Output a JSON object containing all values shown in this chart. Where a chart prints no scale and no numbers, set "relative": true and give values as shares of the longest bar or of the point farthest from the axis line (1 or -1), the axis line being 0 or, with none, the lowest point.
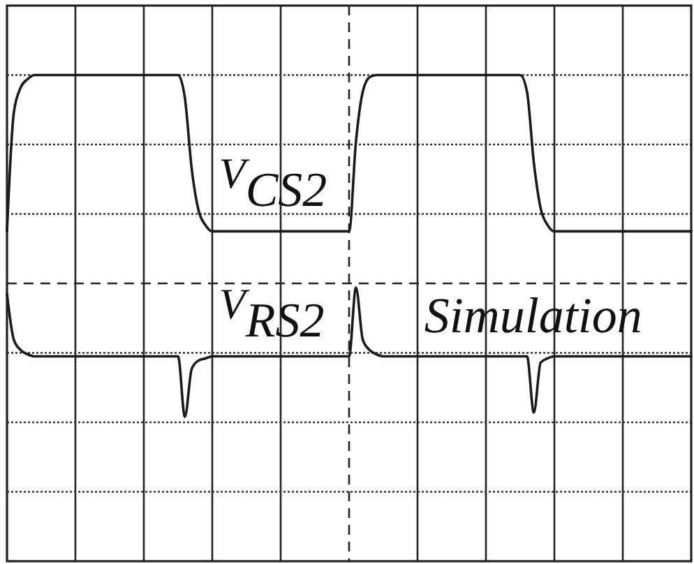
{
  "chart_data": {
    "type": "line",
    "relative": true,
    "grid": true,
    "line_style": "solid",
    "categories": [
      null,
      null,
      null,
      null,
      null,
      null,
      null,
      null,
      null,
      null,
      null,
      null,
      null,
      null,
      null,
      null,
      null,
      null,
      null,
      null,
      null,
      null,
      null,
      null,
      null,
      null,
      null,
      null,
      null,
      null,
      null,
      null,
      null,
      null,
      null,
      null,
      null,
      null,
      null,
      null,
      null,
      null,
      null,
      null,
      null,
      null,
      null,
      null,
      null,
      null,
      null,
      null,
      null,
      null,
      null,
      null,
      null,
      null,
      null,
      null,
      null,
      null,
      null,
      null,
      null,
      null,
      null,
      null,
      null,
      null,
      null,
      null,
      null,
      null,
      null,
      null,
      null,
      null,
      null,
      null,
      null,
      null,
      null,
      null,
      null,
      null,
      null,
      null,
      null,
      null,
      null,
      null,
      null,
      null,
      null,
      null,
      null,
      null,
      null,
      null,
      null
    ],
    "series": [
      {
        "name": "V$_{CS2}$",
        "color": "#1a1a1a",
        "values": [
          0.25,
          0.82,
          0.94,
          0.98,
          1,
          1,
          1,
          1,
          1,
          1,
          1,
          1,
          1,
          1,
          1,
          1,
          1,
          1,
          1,
          1,
          1,
          1,
          1,
          1,
          1,
          1,
          0.89,
          0.55,
          0.35,
          0.28,
          0.25,
          0.25,
          0.25,
          0.25,
          0.25,
          0.25,
          0.25,
          0.25,
          0.25,
          0.25,
          0.25,
          0.25,
          0.25,
          0.25,
          0.25,
          0.25,
          0.25,
          0.25,
          0.25,
          0.25,
          0.25,
          0.68,
          0.92,
          0.99,
          1,
          1,
          1,
          1,
          1,
          1,
          1,
          1,
          1,
          1,
          1,
          1,
          1,
          1,
          1,
          1,
          1,
          1,
          1,
          1,
          1,
          1,
          0.92,
          0.58,
          0.36,
          0.28,
          0.25,
          0.25,
          0.25,
          0.25,
          0.25,
          0.25,
          0.25,
          0.25,
          0.25,
          0.25,
          0.25,
          0.25,
          0.25,
          0.25,
          0.25,
          0.25,
          0.25,
          0.25,
          0.25,
          0.25,
          0.25
        ]
      },
      {
        "name": "V$_{RS2}$",
        "color": "#1a1a1a",
        "values": [
          -0.05,
          -0.27,
          -0.32,
          -0.34,
          -0.35,
          -0.35,
          -0.35,
          -0.35,
          -0.35,
          -0.35,
          -0.35,
          -0.35,
          -0.35,
          -0.35,
          -0.35,
          -0.35,
          -0.35,
          -0.35,
          -0.35,
          -0.35,
          -0.35,
          -0.35,
          -0.35,
          -0.35,
          -0.35,
          -0.35,
          -0.64,
          -0.41,
          -0.37,
          -0.36,
          -0.35,
          -0.35,
          -0.35,
          -0.35,
          -0.35,
          -0.35,
          -0.35,
          -0.35,
          -0.35,
          -0.35,
          -0.35,
          -0.35,
          -0.35,
          -0.35,
          -0.35,
          -0.35,
          -0.35,
          -0.35,
          -0.35,
          -0.35,
          -0.35,
          -0.02,
          -0.27,
          -0.32,
          -0.34,
          -0.35,
          -0.35,
          -0.35,
          -0.35,
          -0.35,
          -0.35,
          -0.35,
          -0.35,
          -0.35,
          -0.35,
          -0.35,
          -0.35,
          -0.35,
          -0.35,
          -0.35,
          -0.35,
          -0.35,
          -0.35,
          -0.35,
          -0.35,
          -0.35,
          -0.35,
          -0.62,
          -0.38,
          -0.36,
          -0.35,
          -0.35,
          -0.35,
          -0.35,
          -0.35,
          -0.35,
          -0.35,
          -0.35,
          -0.35,
          -0.35,
          -0.35,
          -0.35,
          -0.35,
          -0.35,
          -0.35,
          -0.35,
          -0.35,
          -0.35,
          -0.35,
          -0.35,
          -0.35
        ]
      }
    ],
    "ref_lines": [
      {
        "axis": "y",
        "value": 0,
        "color": "#222222",
        "line_style": "dashed"
      }
    ],
    "annotations": [
      "Simulation"
    ]
  }
}
